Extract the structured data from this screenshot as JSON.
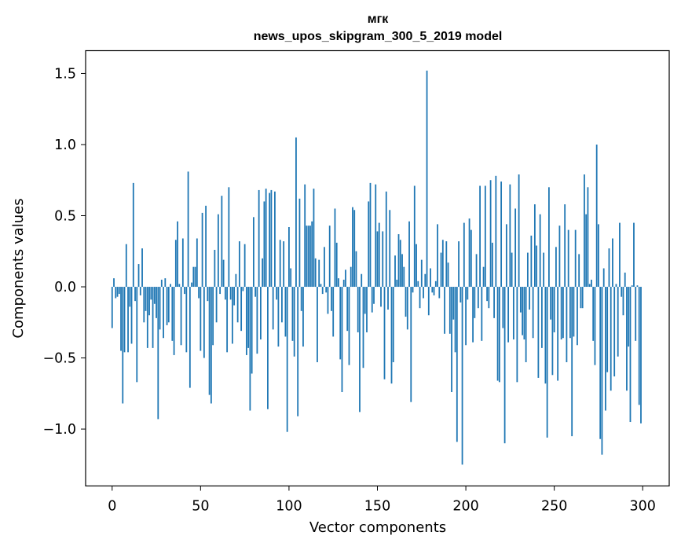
{
  "chart_data": {
    "type": "bar",
    "title_line1": "мгк",
    "title_line2": "news_upos_skipgram_300_5_2019 model",
    "xlabel": "Vector components",
    "ylabel": "Components values",
    "xlim": [
      -15,
      315
    ],
    "ylim": [
      -1.4,
      1.66
    ],
    "xticks": [
      0,
      50,
      100,
      150,
      200,
      250,
      300
    ],
    "xtick_labels": [
      "0",
      "50",
      "100",
      "150",
      "200",
      "250",
      "300"
    ],
    "yticks": [
      -1.0,
      -0.5,
      0.0,
      0.5,
      1.0,
      1.5
    ],
    "ytick_labels": [
      "−1.0",
      "−0.5",
      "0.0",
      "0.5",
      "1.0",
      "1.5"
    ],
    "bar_color": "#1f77b4",
    "values": [
      -0.29,
      0.06,
      -0.08,
      -0.07,
      -0.05,
      -0.45,
      -0.82,
      -0.46,
      0.3,
      -0.46,
      -0.14,
      -0.4,
      0.73,
      -0.1,
      -0.67,
      0.16,
      -0.06,
      0.27,
      -0.25,
      -0.17,
      -0.43,
      -0.2,
      -0.09,
      -0.43,
      -0.12,
      -0.22,
      -0.93,
      -0.3,
      0.05,
      -0.36,
      0.06,
      -0.27,
      -0.25,
      0.02,
      -0.38,
      -0.48,
      0.33,
      0.46,
      0.02,
      -0.41,
      0.34,
      -0.05,
      -0.46,
      0.81,
      -0.71,
      0.03,
      0.14,
      0.14,
      0.34,
      -0.08,
      -0.45,
      0.52,
      -0.5,
      0.57,
      -0.1,
      -0.76,
      -0.82,
      -0.41,
      0.26,
      -0.25,
      0.51,
      -0.05,
      0.64,
      0.19,
      -0.09,
      -0.46,
      0.7,
      -0.09,
      -0.4,
      -0.13,
      0.09,
      -0.25,
      0.32,
      -0.31,
      -0.03,
      0.3,
      -0.48,
      -0.43,
      -0.87,
      -0.61,
      0.49,
      -0.07,
      -0.47,
      0.68,
      -0.37,
      0.2,
      0.6,
      0.69,
      -0.86,
      0.66,
      0.68,
      -0.3,
      0.67,
      -0.09,
      -0.42,
      0.33,
      -0.25,
      0.32,
      -0.35,
      -1.02,
      0.42,
      0.13,
      -0.38,
      -0.49,
      1.05,
      -0.91,
      0.62,
      -0.17,
      -0.42,
      0.72,
      0.43,
      0.43,
      0.43,
      0.46,
      0.69,
      0.2,
      -0.53,
      0.19,
      0.02,
      -0.05,
      0.28,
      -0.04,
      -0.19,
      0.43,
      -0.17,
      -0.35,
      0.55,
      0.31,
      0.06,
      -0.51,
      -0.74,
      0.05,
      0.12,
      -0.31,
      -0.55,
      0.14,
      0.56,
      0.54,
      0.25,
      -0.32,
      -0.88,
      0.09,
      -0.57,
      -0.19,
      -0.32,
      0.6,
      0.73,
      -0.18,
      -0.12,
      0.72,
      0.39,
      0.45,
      -0.14,
      0.39,
      -0.65,
      0.67,
      -0.16,
      0.54,
      -0.68,
      -0.53,
      0.22,
      0.05,
      0.37,
      0.33,
      0.23,
      0.14,
      -0.21,
      -0.3,
      0.46,
      -0.81,
      -0.04,
      0.71,
      0.3,
      0.04,
      -0.15,
      0.19,
      -0.08,
      0.09,
      1.52,
      -0.2,
      0.13,
      -0.04,
      -0.06,
      0.04,
      0.44,
      -0.08,
      0.24,
      0.33,
      -0.33,
      0.32,
      0.17,
      -0.33,
      -0.74,
      -0.23,
      -0.46,
      -1.09,
      0.32,
      -0.11,
      -1.25,
      0.45,
      -0.41,
      -0.09,
      0.48,
      0.4,
      -0.39,
      -0.22,
      0.23,
      -0.15,
      0.71,
      -0.38,
      0.14,
      0.71,
      -0.1,
      -0.15,
      0.75,
      0.31,
      -0.22,
      0.78,
      -0.66,
      -0.67,
      0.74,
      -0.29,
      -1.1,
      0.44,
      -0.39,
      0.72,
      0.24,
      -0.37,
      0.55,
      -0.67,
      0.79,
      -0.18,
      -0.34,
      -0.37,
      -0.53,
      0.24,
      -0.16,
      0.36,
      -0.36,
      0.58,
      0.29,
      -0.64,
      0.51,
      -0.43,
      0.24,
      -0.68,
      -1.06,
      0.7,
      -0.23,
      -0.62,
      -0.32,
      0.28,
      -0.66,
      0.43,
      -0.37,
      -0.36,
      0.58,
      -0.53,
      0.4,
      -0.36,
      -1.05,
      -0.35,
      0.4,
      -0.41,
      0.23,
      -0.15,
      -0.15,
      0.79,
      0.51,
      0.7,
      0.02,
      0.05,
      -0.38,
      -0.55,
      1.0,
      0.44,
      -1.07,
      -1.18,
      0.13,
      -0.87,
      -0.6,
      0.27,
      -0.73,
      0.34,
      -0.63,
      0.02,
      -0.49,
      0.45,
      -0.07,
      -0.2,
      0.1,
      -0.73,
      -0.42,
      -0.95,
      0.01,
      0.45,
      -0.38,
      0.01,
      -0.83,
      -0.96
    ]
  }
}
